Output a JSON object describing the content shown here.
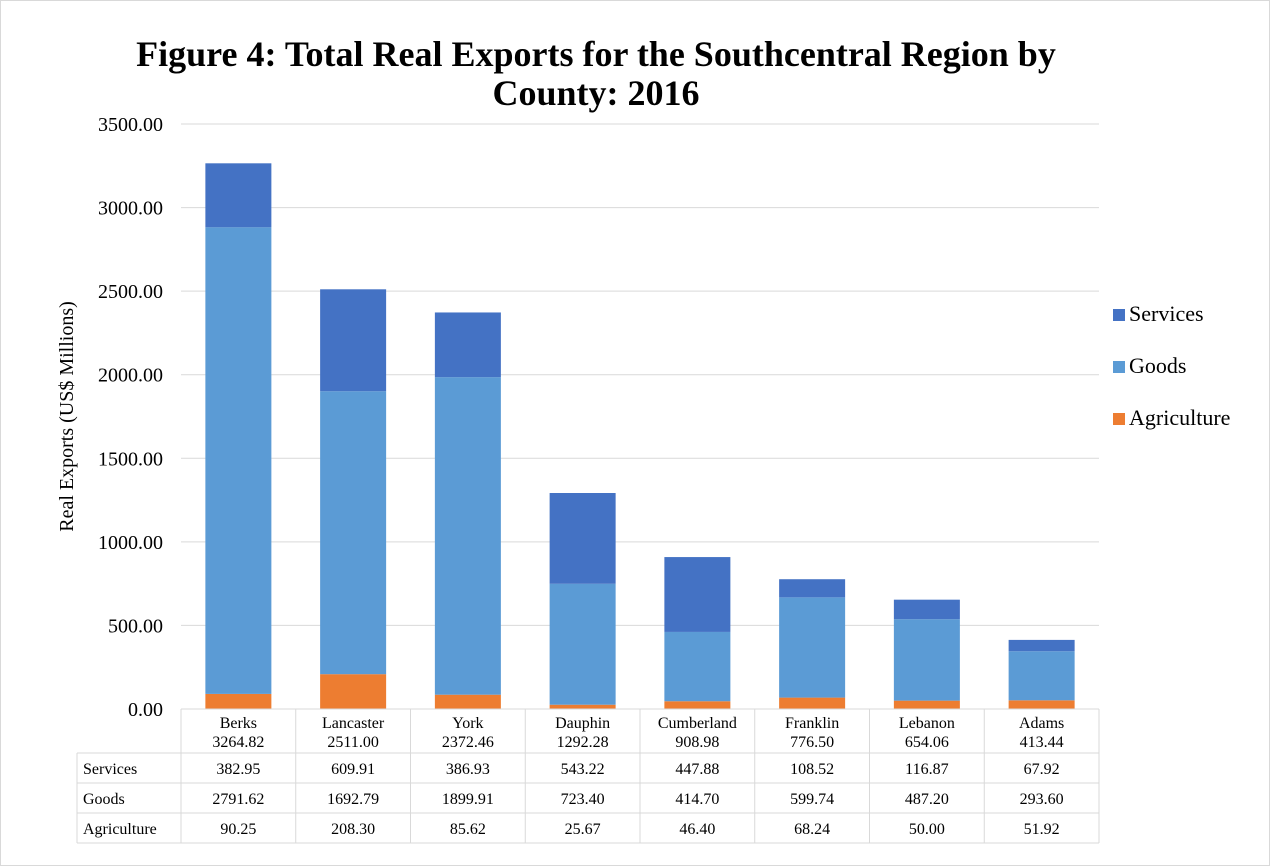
{
  "chart_data": {
    "type": "bar",
    "stacked": true,
    "title": "Figure 4: Total Real Exports for the Southcentral Region by County: 2016",
    "xlabel": "",
    "ylabel": "Real Exports (US$ Millions)",
    "ylim": [
      0,
      3500
    ],
    "yticks": [
      "0.00",
      "500.00",
      "1000.00",
      "1500.00",
      "2000.00",
      "2500.00",
      "3000.00",
      "3500.00"
    ],
    "grid": true,
    "legend_position": "right",
    "categories": [
      "Berks",
      "Lancaster",
      "York",
      "Dauphin",
      "Cumberland",
      "Franklin",
      "Lebanon",
      "Adams"
    ],
    "totals": [
      "3264.82",
      "2511.00",
      "2372.46",
      "1292.28",
      "908.98",
      "776.50",
      "654.06",
      "413.44"
    ],
    "series": [
      {
        "name": "Agriculture",
        "color": "#ED7D31",
        "values": [
          90.25,
          208.3,
          85.62,
          25.67,
          46.4,
          68.24,
          50.0,
          51.92
        ],
        "labels": [
          "90.25",
          "208.30",
          "85.62",
          "25.67",
          "46.40",
          "68.24",
          "50.00",
          "51.92"
        ]
      },
      {
        "name": "Goods",
        "color": "#5B9BD5",
        "values": [
          2791.62,
          1692.79,
          1899.91,
          723.4,
          414.7,
          599.74,
          487.2,
          293.6
        ],
        "labels": [
          "2791.62",
          "1692.79",
          "1899.91",
          "723.40",
          "414.70",
          "599.74",
          "487.20",
          "293.60"
        ]
      },
      {
        "name": "Services",
        "color": "#4472C4",
        "values": [
          382.95,
          609.91,
          386.93,
          543.22,
          447.88,
          108.52,
          116.87,
          67.92
        ],
        "labels": [
          "382.95",
          "609.91",
          "386.93",
          "543.22",
          "447.88",
          "108.52",
          "116.87",
          "67.92"
        ]
      }
    ],
    "table_row_order": [
      "Services",
      "Goods",
      "Agriculture"
    ],
    "legend_order": [
      "Services",
      "Goods",
      "Agriculture"
    ]
  }
}
